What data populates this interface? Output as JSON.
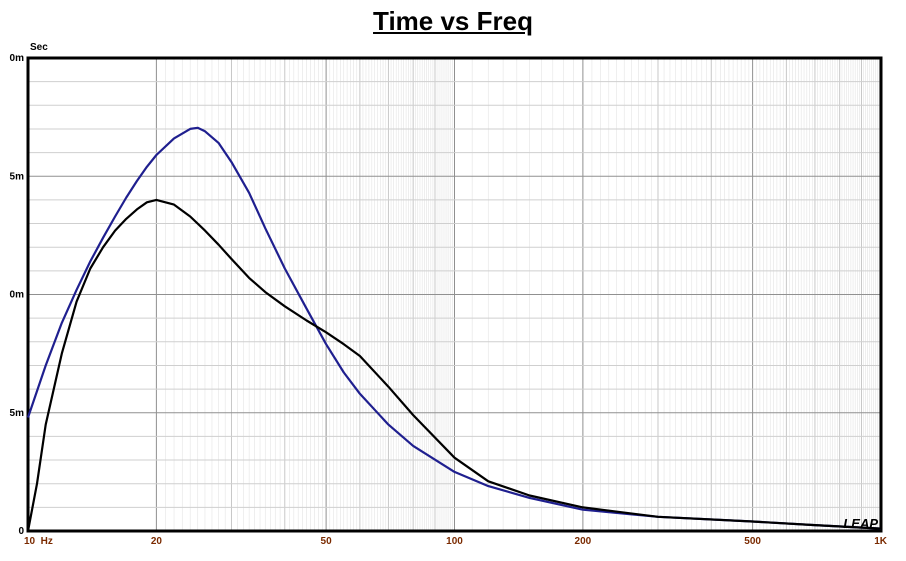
{
  "chart_data": {
    "type": "line",
    "title": "Time vs Freq",
    "unit_label": "Sec",
    "xscale": "log",
    "xlim": [
      10,
      1000
    ],
    "ylim": [
      0,
      0.02
    ],
    "x_ticks": [
      {
        "value": 10,
        "label": "10  Hz"
      },
      {
        "value": 20,
        "label": "20"
      },
      {
        "value": 50,
        "label": "50"
      },
      {
        "value": 100,
        "label": "100"
      },
      {
        "value": 200,
        "label": "200"
      },
      {
        "value": 500,
        "label": "500"
      },
      {
        "value": 1000,
        "label": "1K"
      }
    ],
    "y_ticks": [
      {
        "value": 0,
        "label": "0"
      },
      {
        "value": 0.005,
        "label": "5m"
      },
      {
        "value": 0.01,
        "label": "0m"
      },
      {
        "value": 0.015,
        "label": "5m"
      },
      {
        "value": 0.02,
        "label": "0m"
      }
    ],
    "grid": true,
    "series": [
      {
        "color": "#1f1f8f",
        "x": [
          10,
          11,
          12,
          13,
          14,
          15,
          16,
          17,
          18,
          19,
          20,
          22,
          24,
          25,
          26,
          28,
          30,
          33,
          36,
          40,
          45,
          50,
          55,
          60,
          70,
          80,
          100,
          120,
          150,
          200,
          300,
          500,
          700,
          1000
        ],
        "y": [
          0.0048,
          0.007,
          0.0088,
          0.0102,
          0.0114,
          0.0124,
          0.0133,
          0.0141,
          0.0148,
          0.0154,
          0.0159,
          0.0166,
          0.017,
          0.01705,
          0.0169,
          0.0164,
          0.0156,
          0.0143,
          0.0128,
          0.0111,
          0.0094,
          0.0079,
          0.0067,
          0.0058,
          0.0045,
          0.0036,
          0.0025,
          0.0019,
          0.0014,
          0.0009,
          0.0006,
          0.0004,
          0.00025,
          0.0001
        ]
      },
      {
        "color": "#000000",
        "x": [
          10,
          10.5,
          11,
          12,
          13,
          14,
          15,
          16,
          17,
          18,
          19,
          20,
          22,
          24,
          26,
          28,
          30,
          33,
          36,
          40,
          45,
          50,
          55,
          60,
          70,
          80,
          100,
          120,
          150,
          200,
          300,
          500,
          700,
          1000
        ],
        "y": [
          0.0,
          0.002,
          0.0045,
          0.0075,
          0.0097,
          0.0111,
          0.012,
          0.0127,
          0.0132,
          0.0136,
          0.0139,
          0.014,
          0.0138,
          0.0133,
          0.0127,
          0.0121,
          0.0115,
          0.0107,
          0.0101,
          0.0095,
          0.0089,
          0.0084,
          0.0079,
          0.0074,
          0.0061,
          0.0049,
          0.0031,
          0.0021,
          0.0015,
          0.001,
          0.0006,
          0.0004,
          0.00025,
          0.0001
        ]
      }
    ]
  },
  "watermark": "LEAP"
}
